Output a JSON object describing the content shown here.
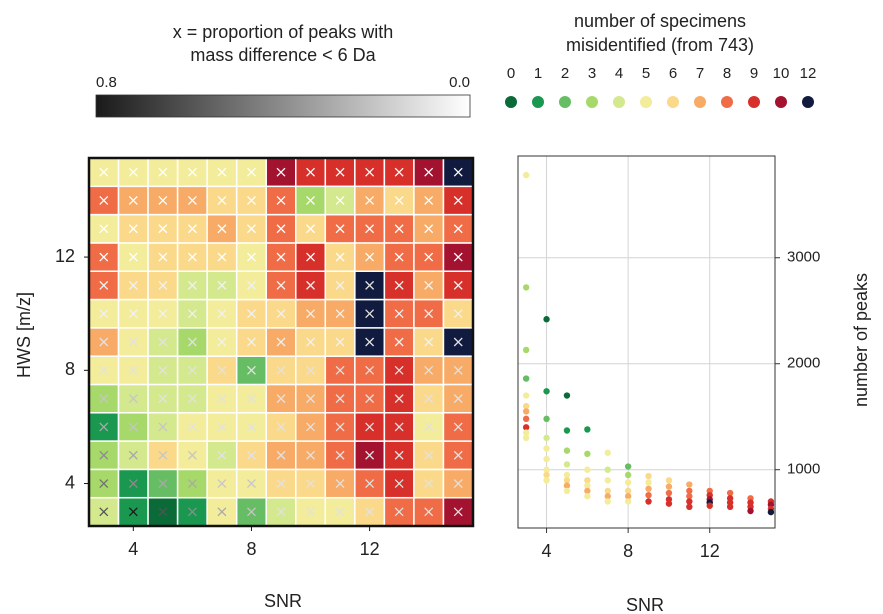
{
  "chart_data": [
    {
      "type": "heatmap",
      "xlabel": "SNR",
      "ylabel": "HWS [m/z]",
      "x": [
        3,
        4,
        5,
        6,
        7,
        8,
        9,
        10,
        11,
        12,
        13,
        14,
        15
      ],
      "y": [
        3,
        4,
        5,
        6,
        7,
        8,
        9,
        10,
        11,
        12,
        13,
        14,
        15
      ],
      "xlim": [
        2.5,
        15.5
      ],
      "ylim": [
        2.5,
        15.5
      ],
      "xticks": [
        4,
        8,
        12
      ],
      "yticks": [
        4,
        8,
        12
      ],
      "z": [
        [
          4,
          1,
          0,
          1,
          5,
          2,
          4,
          5,
          5,
          6,
          8,
          8,
          10
        ],
        [
          3,
          1,
          2,
          3,
          5,
          5,
          6,
          6,
          7,
          8,
          9,
          6,
          7
        ],
        [
          3,
          4,
          6,
          5,
          4,
          6,
          7,
          7,
          8,
          10,
          9,
          6,
          8
        ],
        [
          1,
          3,
          4,
          5,
          5,
          5,
          6,
          7,
          8,
          9,
          9,
          5,
          8
        ],
        [
          3,
          4,
          4,
          4,
          5,
          5,
          7,
          7,
          8,
          8,
          9,
          6,
          7
        ],
        [
          5,
          5,
          4,
          4,
          6,
          2,
          6,
          6,
          8,
          8,
          9,
          7,
          7
        ],
        [
          7,
          5,
          4,
          3,
          5,
          6,
          7,
          6,
          6,
          12,
          8,
          6,
          12
        ],
        [
          5,
          5,
          5,
          4,
          5,
          6,
          6,
          7,
          7,
          12,
          8,
          8,
          6
        ],
        [
          8,
          6,
          6,
          4,
          4,
          5,
          8,
          9,
          6,
          12,
          9,
          7,
          9
        ],
        [
          8,
          5,
          6,
          6,
          6,
          5,
          8,
          9,
          6,
          7,
          8,
          8,
          10
        ],
        [
          5,
          6,
          6,
          6,
          7,
          6,
          8,
          6,
          8,
          8,
          8,
          7,
          8
        ],
        [
          8,
          7,
          7,
          7,
          6,
          6,
          8,
          3,
          4,
          7,
          6,
          7,
          9
        ],
        [
          5,
          5,
          5,
          5,
          5,
          5,
          10,
          9,
          9,
          9,
          9,
          10,
          12
        ]
      ],
      "proportion": [
        [
          0.6,
          0.8,
          0.6,
          0.4,
          0.3,
          0.2,
          0.1,
          0.1,
          0.1,
          0.1,
          0.1,
          0.1,
          0.1
        ],
        [
          0.5,
          0.4,
          0.3,
          0.3,
          0.2,
          0.2,
          0.1,
          0.1,
          0.1,
          0.1,
          0.1,
          0.1,
          0.1
        ],
        [
          0.4,
          0.3,
          0.2,
          0.2,
          0.1,
          0.1,
          0.1,
          0.1,
          0.1,
          0.1,
          0.1,
          0.1,
          0.1
        ],
        [
          0.3,
          0.2,
          0.2,
          0.1,
          0.1,
          0.1,
          0.1,
          0.1,
          0.1,
          0.1,
          0.1,
          0.1,
          0.1
        ],
        [
          0.2,
          0.2,
          0.1,
          0.1,
          0.1,
          0.1,
          0.1,
          0.1,
          0.1,
          0.1,
          0.1,
          0.1,
          0.1
        ],
        [
          0.1,
          0.1,
          0.1,
          0.1,
          0.1,
          0.1,
          0.1,
          0.1,
          0.1,
          0.1,
          0.1,
          0.1,
          0.1
        ],
        [
          0.1,
          0.1,
          0.1,
          0.1,
          0.05,
          0.05,
          0.05,
          0.05,
          0.05,
          0.1,
          0.05,
          0.05,
          0.1
        ],
        [
          0.05,
          0.05,
          0.05,
          0.05,
          0.05,
          0.05,
          0.05,
          0.05,
          0.05,
          0.1,
          0.05,
          0.05,
          0.05
        ],
        [
          0.05,
          0.05,
          0.05,
          0.05,
          0.05,
          0.05,
          0.05,
          0.05,
          0.05,
          0.1,
          0.05,
          0.05,
          0.05
        ],
        [
          0,
          0,
          0,
          0,
          0,
          0,
          0,
          0,
          0,
          0,
          0,
          0,
          0
        ],
        [
          0,
          0,
          0,
          0,
          0,
          0,
          0,
          0,
          0,
          0,
          0,
          0,
          0
        ],
        [
          0,
          0,
          0,
          0,
          0,
          0,
          0,
          0,
          0,
          0,
          0,
          0,
          0
        ],
        [
          0,
          0,
          0,
          0,
          0,
          0,
          0,
          0,
          0,
          0,
          0,
          0,
          0
        ]
      ],
      "colorbar": {
        "title": [
          "x = proportion of peaks with",
          "mass difference < 6 Da"
        ],
        "lim": [
          0.8,
          0
        ],
        "ticks": [
          0.8,
          {
            "value": 0,
            "label": "0.0"
          }
        ],
        "colors": [
          "#1a1a1a",
          "#ffffff"
        ]
      },
      "legend": {
        "title": [
          "number of specimens",
          "misidentified (from 743)"
        ],
        "values": [
          0,
          1,
          2,
          3,
          4,
          5,
          6,
          7,
          8,
          9,
          10,
          12
        ],
        "colors": [
          "#0b6b38",
          "#1a9850",
          "#66bd63",
          "#a6d96a",
          "#d4e88e",
          "#f3ec9a",
          "#fbd98a",
          "#f7ab66",
          "#ef6c47",
          "#d7302a",
          "#a3122f",
          "#111a3f"
        ]
      }
    },
    {
      "type": "scatter",
      "xlabel": "SNR",
      "ylabel": "number of peaks",
      "xlim": [
        2.6,
        15.2
      ],
      "ylim": [
        450,
        3960
      ],
      "xticks": [
        4,
        8,
        12
      ],
      "yticks": [
        1000,
        2000,
        3000
      ],
      "grid": true,
      "x": [
        3,
        3,
        3,
        3,
        3,
        3,
        3,
        3,
        3,
        3,
        3,
        4,
        4,
        4,
        4,
        4,
        4,
        4,
        4,
        4,
        5,
        5,
        5,
        5,
        5,
        5,
        5,
        5,
        6,
        6,
        6,
        6,
        6,
        6,
        6,
        7,
        7,
        7,
        7,
        7,
        7,
        8,
        8,
        8,
        8,
        8,
        8,
        9,
        9,
        9,
        9,
        9,
        10,
        10,
        10,
        10,
        10,
        11,
        11,
        11,
        11,
        11,
        12,
        12,
        12,
        12,
        12,
        13,
        13,
        13,
        13,
        14,
        14,
        14,
        14,
        15,
        15,
        15,
        15
      ],
      "y": [
        3780,
        2720,
        2130,
        1860,
        1700,
        1600,
        1550,
        1480,
        1400,
        1350,
        1300,
        2420,
        1740,
        1480,
        1300,
        1200,
        1100,
        1000,
        950,
        900,
        1700,
        1370,
        1180,
        1050,
        950,
        900,
        850,
        800,
        1380,
        1150,
        1000,
        900,
        850,
        800,
        750,
        1160,
        1000,
        900,
        800,
        750,
        700,
        1030,
        950,
        880,
        800,
        750,
        700,
        940,
        880,
        820,
        760,
        700,
        900,
        840,
        780,
        720,
        680,
        860,
        800,
        750,
        700,
        650,
        800,
        760,
        720,
        690,
        660,
        780,
        730,
        690,
        650,
        730,
        690,
        650,
        610,
        700,
        670,
        630,
        600
      ],
      "misidentified": [
        5,
        3,
        3,
        2,
        5,
        6,
        7,
        8,
        9,
        5,
        5,
        0,
        1,
        2,
        4,
        5,
        5,
        5,
        6,
        5,
        0,
        1,
        3,
        4,
        5,
        6,
        7,
        5,
        1,
        3,
        5,
        6,
        5,
        7,
        5,
        5,
        4,
        5,
        6,
        7,
        5,
        2,
        3,
        5,
        6,
        7,
        5,
        6,
        5,
        7,
        8,
        9,
        6,
        7,
        8,
        9,
        9,
        7,
        8,
        8,
        9,
        9,
        8,
        9,
        10,
        12,
        9,
        8,
        9,
        9,
        9,
        8,
        9,
        9,
        10,
        9,
        10,
        9,
        12
      ]
    }
  ]
}
